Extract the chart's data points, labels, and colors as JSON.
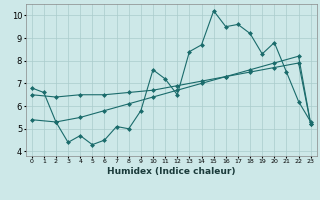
{
  "xlabel": "Humidex (Indice chaleur)",
  "xlim": [
    -0.5,
    23.5
  ],
  "ylim": [
    3.8,
    10.5
  ],
  "yticks": [
    4,
    5,
    6,
    7,
    8,
    9,
    10
  ],
  "xticks": [
    0,
    1,
    2,
    3,
    4,
    5,
    6,
    7,
    8,
    9,
    10,
    11,
    12,
    13,
    14,
    15,
    16,
    17,
    18,
    19,
    20,
    21,
    22,
    23
  ],
  "background_color": "#cde8e8",
  "grid_color": "#aacccc",
  "line_color": "#1a6b6b",
  "line1_x": [
    0,
    1,
    2,
    3,
    4,
    5,
    6,
    7,
    8,
    9,
    10,
    11,
    12,
    13,
    14,
    15,
    16,
    17,
    18,
    19,
    20,
    21,
    22,
    23
  ],
  "line1_y": [
    6.8,
    6.6,
    5.3,
    4.4,
    4.7,
    4.3,
    4.5,
    5.1,
    5.0,
    5.8,
    7.6,
    7.2,
    6.5,
    8.4,
    8.7,
    10.2,
    9.5,
    9.6,
    9.2,
    8.3,
    8.8,
    7.5,
    6.2,
    5.3
  ],
  "line2_x": [
    0,
    2,
    4,
    6,
    8,
    10,
    12,
    14,
    16,
    18,
    20,
    22,
    23
  ],
  "line2_y": [
    5.4,
    5.3,
    5.5,
    5.8,
    6.1,
    6.4,
    6.7,
    7.0,
    7.3,
    7.6,
    7.9,
    8.2,
    5.2
  ],
  "line3_x": [
    0,
    2,
    4,
    6,
    8,
    10,
    12,
    14,
    16,
    18,
    20,
    22,
    23
  ],
  "line3_y": [
    6.5,
    6.4,
    6.5,
    6.5,
    6.6,
    6.7,
    6.9,
    7.1,
    7.3,
    7.5,
    7.7,
    7.9,
    5.2
  ],
  "marker_size": 2.5
}
